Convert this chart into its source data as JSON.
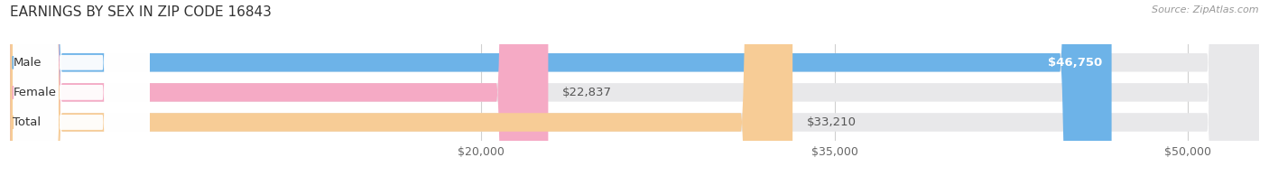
{
  "title": "EARNINGS BY SEX IN ZIP CODE 16843",
  "source": "Source: ZipAtlas.com",
  "categories": [
    "Male",
    "Female",
    "Total"
  ],
  "values": [
    46750,
    22837,
    33210
  ],
  "bar_colors": [
    "#6db3e8",
    "#f5aac5",
    "#f7cc96"
  ],
  "track_color": "#e8e8ea",
  "value_labels": [
    "$46,750",
    "$22,837",
    "$33,210"
  ],
  "x_ticks": [
    20000,
    35000,
    50000
  ],
  "x_tick_labels": [
    "$20,000",
    "$35,000",
    "$50,000"
  ],
  "x_min": 0,
  "x_max": 53000,
  "background_color": "#ffffff",
  "title_fontsize": 11,
  "bar_height": 0.62,
  "label_fontsize": 9.5,
  "tick_fontsize": 9,
  "source_fontsize": 8
}
